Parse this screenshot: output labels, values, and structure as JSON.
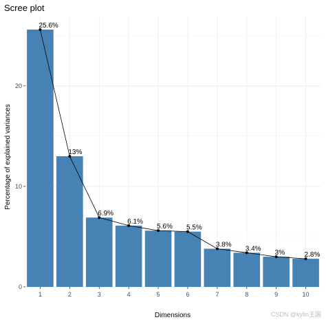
{
  "chart_data": {
    "type": "bar",
    "title": "Scree plot",
    "xlabel": "Dimensions",
    "ylabel": "Percentage of explained variances",
    "categories": [
      "1",
      "2",
      "3",
      "4",
      "5",
      "6",
      "7",
      "8",
      "9",
      "10"
    ],
    "values": [
      25.6,
      13.0,
      6.9,
      6.1,
      5.6,
      5.5,
      3.8,
      3.4,
      3.0,
      2.8
    ],
    "data_labels": [
      "25.6%",
      "13%",
      "6.9%",
      "6.1%",
      "5.6%",
      "5.5%",
      "3.8%",
      "3.4%",
      "3%",
      "2.8%"
    ],
    "ylim": [
      0,
      26.9
    ],
    "yticks": [
      0,
      10,
      20
    ],
    "bar_color": "#4682b4",
    "line_color": "#000000",
    "grid": true,
    "background": "#ffffff",
    "overlay": "line-with-points"
  },
  "watermark": "CSDN @kylin王国"
}
